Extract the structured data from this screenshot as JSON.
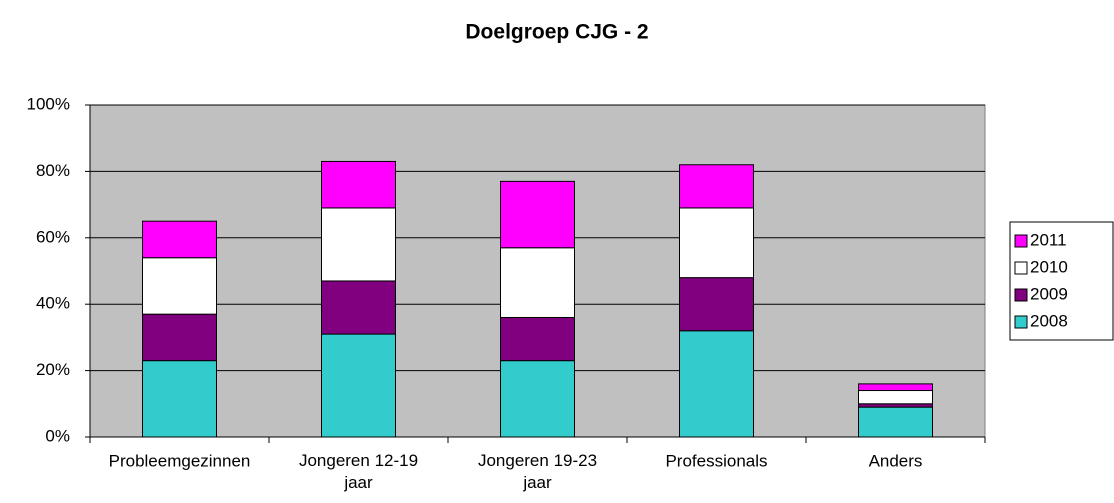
{
  "chart_data": {
    "type": "stacked_bar",
    "title": "Doelgroep CJG - 2",
    "categories": [
      "Probleemgezinnen",
      "Jongeren 12-19 jaar",
      "Jongeren 19-23 jaar",
      "Professionals",
      "Anders"
    ],
    "series": [
      {
        "name": "2008",
        "color": "#33cccc",
        "values": [
          23,
          31,
          23,
          32,
          9
        ]
      },
      {
        "name": "2009",
        "color": "#800080",
        "values": [
          14,
          16,
          13,
          16,
          1
        ]
      },
      {
        "name": "2010",
        "color": "#ffffff",
        "values": [
          17,
          22,
          21,
          21,
          4
        ]
      },
      {
        "name": "2011",
        "color": "#ff00ff",
        "values": [
          11,
          14,
          20,
          13,
          2
        ]
      }
    ],
    "ylim": [
      0,
      100
    ],
    "yticks": [
      {
        "value": 0,
        "label": "0%"
      },
      {
        "value": 20,
        "label": "20%"
      },
      {
        "value": 40,
        "label": "40%"
      },
      {
        "value": 60,
        "label": "60%"
      },
      {
        "value": 80,
        "label": "80%"
      },
      {
        "value": 100,
        "label": "100%"
      }
    ],
    "grid": true,
    "legend": "right",
    "plot_background": "#c0c0c0"
  }
}
